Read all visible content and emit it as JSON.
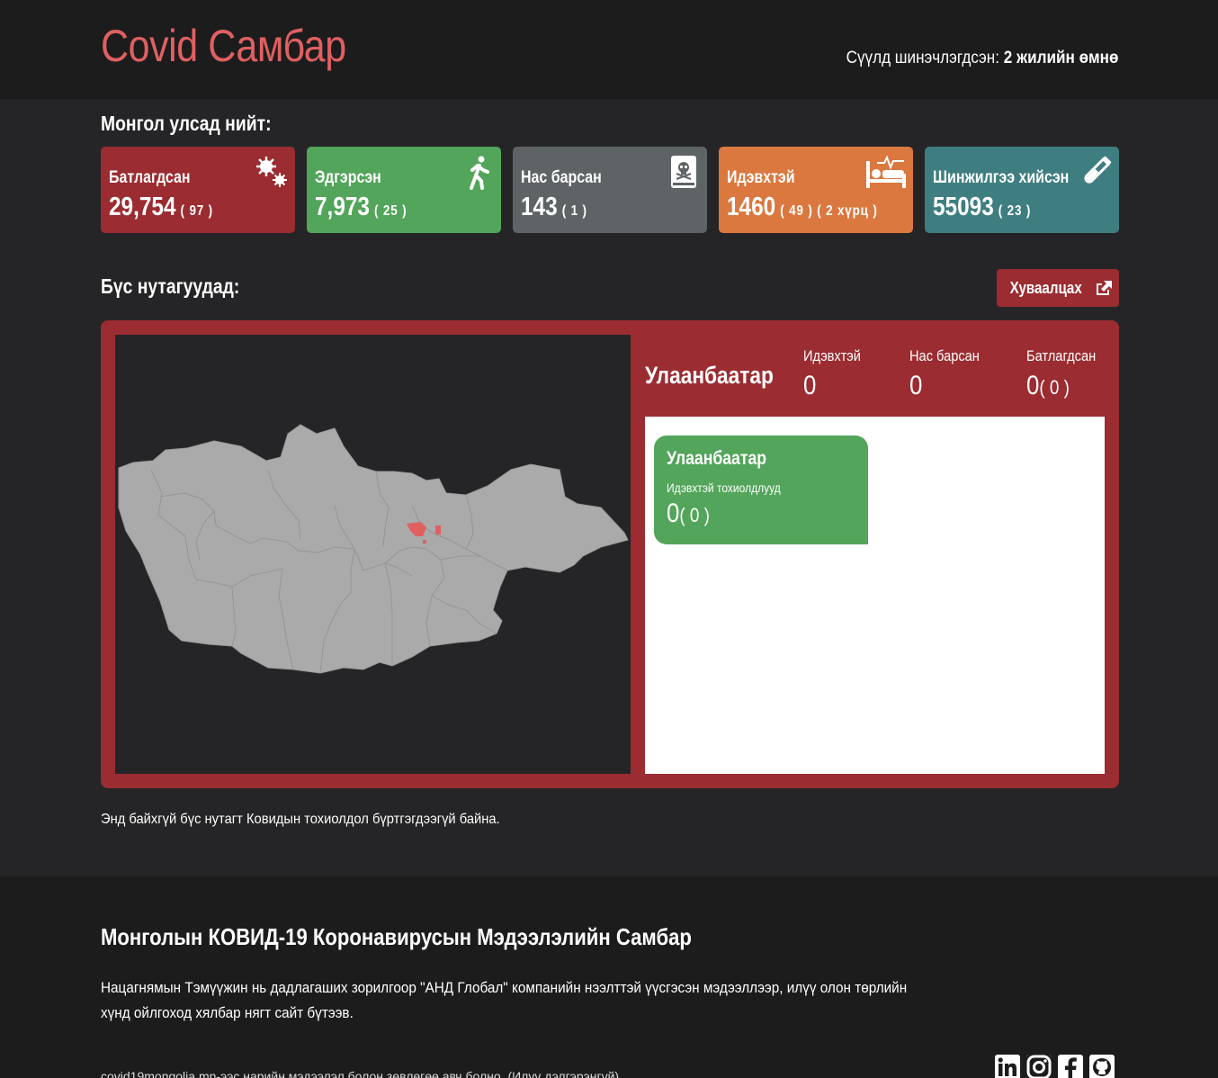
{
  "header": {
    "brand": "Covid Самбар",
    "updated_prefix": "Сүүлд шинэчлэгдсэн: ",
    "updated_value": "2 жилийн өмнө"
  },
  "national": {
    "title": "Монгол улсад нийт:",
    "cards": [
      {
        "label": "Батлагдсан",
        "value": "29,754",
        "delta": "( 97 )",
        "color": "#9b2c31",
        "icon": "virus-icon"
      },
      {
        "label": "Эдгэрсэн",
        "value": "7,973",
        "delta": "( 25 )",
        "color": "#52a55a",
        "icon": "walking-person-icon"
      },
      {
        "label": "Нас барсан",
        "value": "143",
        "delta": "( 1 )",
        "color": "#5e6466",
        "icon": "skull-book-icon"
      },
      {
        "label": "Идэвхтэй",
        "value": "1460",
        "delta": "( 49 ) ( 2 хүрц )",
        "color": "#da7840",
        "icon": "hospital-bed-icon"
      },
      {
        "label": "Шинжилгээ хийсэн",
        "value": "55093",
        "delta": "( 23 )",
        "color": "#3f7e80",
        "icon": "test-tube-icon"
      }
    ]
  },
  "regions": {
    "title": "Бүс нутагуудад:",
    "share_label": "Хуваалцах",
    "selected": {
      "name": "Улаанбаатар",
      "active_label": "Идэвхтэй",
      "active_value": "0",
      "deaths_label": "Нас барсан",
      "deaths_value": "0",
      "confirmed_label": "Батлагдсан",
      "confirmed_value": "0",
      "confirmed_delta": "( 0 )"
    },
    "city_card": {
      "name": "Улаанбаатар",
      "label": "Идэвхтэй тохиолдлууд",
      "value": "0",
      "delta": "( 0 )"
    },
    "note": "Энд байхгүй бүс нутагт Ковидын тохиолдол бүртгэгдээгүй байна."
  },
  "footer": {
    "title": "Монголын КОВИД-19 Коронавирусын Мэдээлэлийн Самбар",
    "description": "Нацагнямын Тэмүүжин нь дадлагаших зорилгоор \"АНД Глобал\" компанийн нээлттэй үүсгэсэн мэдээллээр, илүү олон төрлийн хүнд ойлгоход хялбар нягт сайт бүтээв.",
    "bottom_text": "covid19mongolia.mn-ээс нарийн мэдээлэл болон зөвлөгөө авч болно. (Илүү дэлгэрэнгүй)",
    "social": [
      "linkedin-icon",
      "instagram-icon",
      "facebook-icon",
      "github-icon"
    ]
  }
}
